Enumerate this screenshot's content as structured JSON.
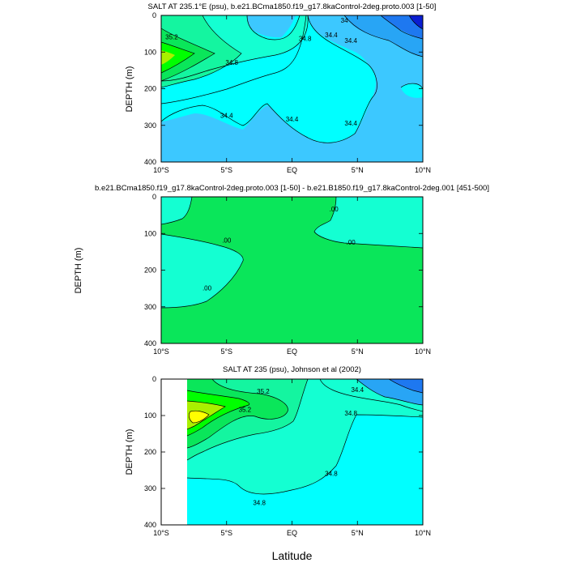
{
  "colors": {
    "deep_blue": "#0a1ed2",
    "blue": "#1e78f0",
    "sky": "#28a5f5",
    "light_blue": "#3cc8ff",
    "cyan": "#00ffff",
    "aqua": "#14ffd2",
    "sea_green": "#14f5a0",
    "green": "#0ae65a",
    "lime": "#00ff00",
    "yellow_green": "#aaf000",
    "yellow": "#ffff00",
    "contour_line": "#000000"
  },
  "xlabel": "Latitude",
  "chart_data": [
    {
      "type": "contour",
      "title": "SALT AT 235.1°E (psu), b.e21.BCma1850.f19_g17.8kaControl-2deg.proto.003 [1-50]",
      "ylabel": "DEPTH (m)",
      "xlim": [
        -10,
        10
      ],
      "ylim": [
        400,
        0
      ],
      "x_ticks": [
        -10,
        -5,
        0,
        5,
        10
      ],
      "x_tick_labels": [
        "10°S",
        "5°S",
        "EQ",
        "5°N",
        "10°N"
      ],
      "y_ticks": [
        0,
        100,
        200,
        300,
        400
      ],
      "y_tick_labels": [
        "0",
        "100",
        "200",
        "300",
        "400"
      ],
      "contour_labels": [
        {
          "text": "35.2",
          "x": -9.2,
          "y": 65
        },
        {
          "text": "34.8",
          "x": -4.6,
          "y": 135
        },
        {
          "text": "34.8",
          "x": 1.0,
          "y": 70
        },
        {
          "text": "34.4",
          "x": 3.0,
          "y": 60
        },
        {
          "text": "34.4",
          "x": 4.5,
          "y": 75
        },
        {
          "text": "34",
          "x": 4.0,
          "y": 20
        },
        {
          "text": "34.4",
          "x": -5.0,
          "y": 280
        },
        {
          "text": "34.4",
          "x": 0.0,
          "y": 290
        },
        {
          "text": "34.4",
          "x": 4.5,
          "y": 300
        }
      ]
    },
    {
      "type": "contour",
      "title": "b.e21.BCma1850.f19_g17.8kaControl-2deg.proto.003 [1-50] - b.e21.B1850.f19_g17.8kaControl-2deg.001 [451-500]",
      "ylabel": "DEPTH (m)",
      "xlim": [
        -10,
        10
      ],
      "ylim": [
        400,
        0
      ],
      "x_ticks": [
        -10,
        -5,
        0,
        5,
        10
      ],
      "x_tick_labels": [
        "10°S",
        "5°S",
        "EQ",
        "5°N",
        "10°N"
      ],
      "y_ticks": [
        0,
        100,
        200,
        300,
        400
      ],
      "y_tick_labels": [
        "0",
        "100",
        "200",
        "300",
        "400"
      ],
      "contour_labels": [
        {
          "text": ".00",
          "x": -5.0,
          "y": 125
        },
        {
          "text": ".00",
          "x": -6.5,
          "y": 255
        },
        {
          "text": ".00",
          "x": 3.2,
          "y": 40
        },
        {
          "text": ".00",
          "x": 4.5,
          "y": 130
        }
      ]
    },
    {
      "type": "contour",
      "title": "SALT AT 235 (psu), Johnson et al (2002)",
      "ylabel": "DEPTH (m)",
      "xlim": [
        -10,
        10
      ],
      "ylim": [
        400,
        0
      ],
      "x_ticks": [
        -10,
        -5,
        0,
        5,
        10
      ],
      "x_tick_labels": [
        "10°S",
        "5°S",
        "EQ",
        "5°N",
        "10°N"
      ],
      "y_ticks": [
        0,
        100,
        200,
        300,
        400
      ],
      "y_tick_labels": [
        "0",
        "100",
        "200",
        "300",
        "400"
      ],
      "data_start_x": -8,
      "contour_labels": [
        {
          "text": "35.2",
          "x": -2.2,
          "y": 40
        },
        {
          "text": "35.2",
          "x": -3.6,
          "y": 90
        },
        {
          "text": "34.4",
          "x": 5.0,
          "y": 35
        },
        {
          "text": "34.8",
          "x": 4.5,
          "y": 100
        },
        {
          "text": "34.8",
          "x": 3.0,
          "y": 265
        },
        {
          "text": "34.8",
          "x": -2.5,
          "y": 345
        }
      ]
    }
  ]
}
